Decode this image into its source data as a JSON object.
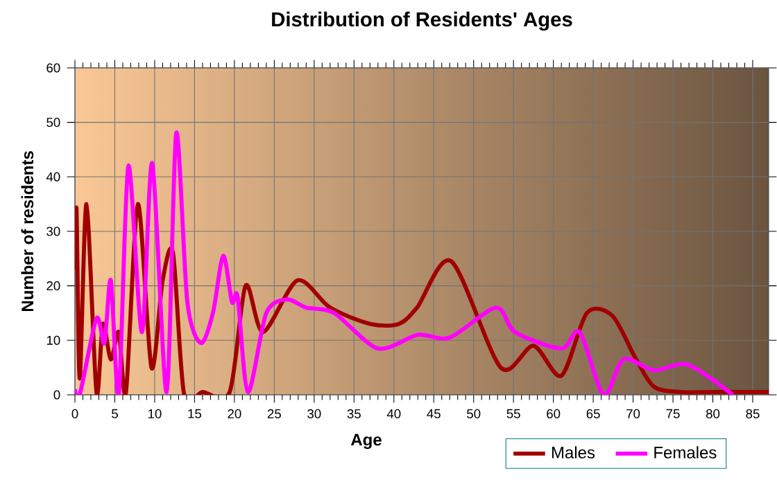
{
  "chart_data": {
    "type": "line",
    "title": "Distribution of Residents' Ages",
    "xlabel": "Age",
    "ylabel": "Number of residents",
    "xlim": [
      0,
      87
    ],
    "ylim": [
      0,
      60
    ],
    "xticks": [
      0,
      5,
      10,
      15,
      20,
      25,
      30,
      35,
      40,
      45,
      50,
      55,
      60,
      65,
      70,
      75,
      80,
      85
    ],
    "yticks": [
      0,
      10,
      20,
      30,
      40,
      50,
      60
    ],
    "grid": true,
    "legend": "bottom",
    "line_style": "solid",
    "marker": "none",
    "series": [
      {
        "name": "Males",
        "color": "#a00000",
        "x": [
          0,
          0.2,
          0.6,
          1.45,
          2.7,
          3.5,
          4.5,
          5.5,
          6.4,
          7.9,
          9.6,
          11,
          12.3,
          13.7,
          16,
          19.4,
          21.4,
          23.6,
          27.9,
          32,
          37,
          40.6,
          42.9,
          47.2,
          53.4,
          57.5,
          61,
          64.2,
          67.4,
          70.2,
          72.6,
          76,
          80,
          87
        ],
        "values": [
          23,
          34,
          3,
          35,
          0.5,
          13,
          6.5,
          11.5,
          0.5,
          35,
          5,
          21,
          26,
          0,
          0.5,
          0.5,
          20,
          11.5,
          21,
          16,
          13,
          13,
          16,
          24.5,
          5,
          9,
          3.5,
          15,
          14.5,
          7,
          1.5,
          0.5,
          0.5,
          0.5
        ]
      },
      {
        "name": "Females",
        "color": "#ff00ff",
        "x": [
          0,
          0.6,
          2.7,
          3.7,
          4.5,
          5.5,
          6.7,
          8.4,
          9.7,
          11.5,
          12.7,
          14.1,
          15.8,
          17.3,
          18.6,
          19.7,
          20.4,
          21.7,
          24,
          26.6,
          29,
          32.5,
          38,
          43,
          47,
          52.8,
          55.2,
          61,
          63.3,
          66.3,
          68.8,
          72.6,
          76.9,
          82.5
        ],
        "values": [
          1,
          0,
          14,
          9.5,
          21,
          0,
          42,
          11.5,
          42.5,
          0.5,
          48,
          17,
          9.5,
          15,
          25.5,
          17,
          18,
          0.5,
          15,
          17.5,
          16,
          15,
          8.5,
          11,
          10.5,
          16,
          11.5,
          8.5,
          11.5,
          0,
          6.5,
          4.5,
          5.5,
          0
        ]
      }
    ]
  }
}
